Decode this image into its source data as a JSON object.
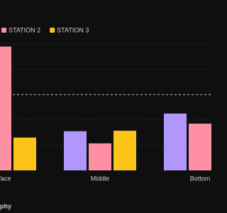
{
  "chart_data": {
    "type": "bar",
    "categories": [
      "Surface",
      "Middle",
      "Bottom"
    ],
    "series": [
      {
        "color": "#b197fc",
        "values": [
          null,
          1.55,
          2.25
        ]
      },
      {
        "name": "STATION 2",
        "color": "#ff8fa3",
        "values": [
          4.9,
          1.07,
          1.85
        ]
      },
      {
        "name": "STATION 3",
        "color": "#fcc419",
        "values": [
          1.3,
          1.57,
          null
        ]
      }
    ],
    "ylim": [
      0,
      5
    ],
    "grid_values": [
      1,
      2,
      3,
      4,
      5
    ],
    "reference_line": 3,
    "footer": "phy"
  }
}
